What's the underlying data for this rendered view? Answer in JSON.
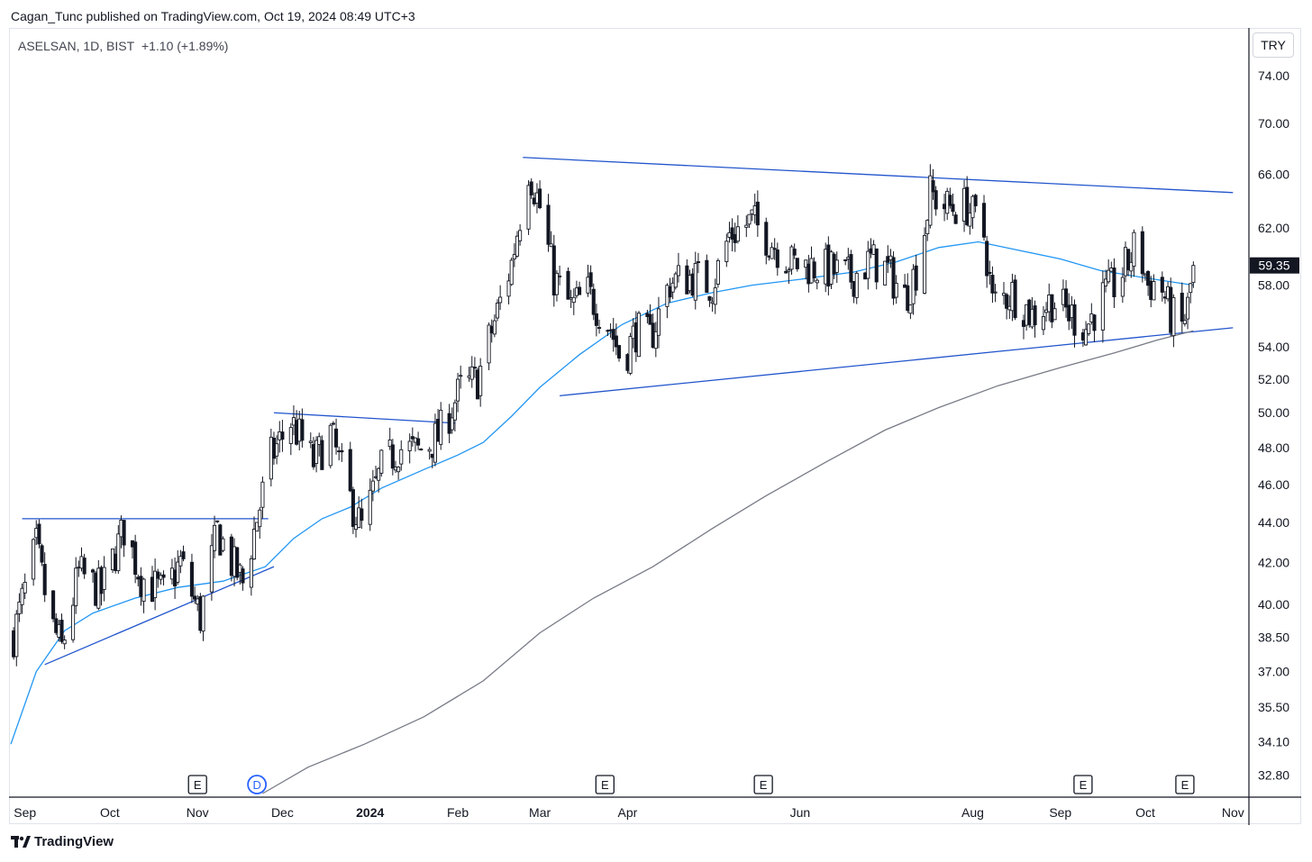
{
  "header": {
    "published": "Cagan_Tunc published on TradingView.com, Oct 19, 2024 08:49 UTC+3"
  },
  "symbol": {
    "info": "ASELSAN, 1D, BIST",
    "change": "+1.10 (+1.89%)"
  },
  "currency": "TRY",
  "branding": {
    "name": "TradingView"
  },
  "colors": {
    "candle": "#131722",
    "ma50": "#2196f3",
    "ma200": "#787b86",
    "trendline": "#2255cc",
    "price_tag": "#131722"
  },
  "chart_data": {
    "type": "candlestick",
    "symbol": "ASELSAN",
    "interval": "1D",
    "exchange": "BIST",
    "y_scale": "log",
    "ylim": [
      32.0,
      78.0
    ],
    "y_ticks": [
      "74.00",
      "70.00",
      "66.00",
      "62.00",
      "58.00",
      "54.00",
      "52.00",
      "50.00",
      "48.00",
      "46.00",
      "44.00",
      "42.00",
      "40.00",
      "38.50",
      "37.00",
      "35.50",
      "34.10",
      "32.80"
    ],
    "x_ticks": [
      {
        "label": "Sep",
        "date": "2023-09-01"
      },
      {
        "label": "Oct",
        "date": "2023-10-01"
      },
      {
        "label": "Nov",
        "date": "2023-11-01"
      },
      {
        "label": "Dec",
        "date": "2023-12-01"
      },
      {
        "label": "2024",
        "date": "2024-01-01",
        "bold": true
      },
      {
        "label": "Feb",
        "date": "2024-02-01"
      },
      {
        "label": "Mar",
        "date": "2024-03-01"
      },
      {
        "label": "Apr",
        "date": "2024-04-01"
      },
      {
        "label": "Jun",
        "date": "2024-06-01"
      },
      {
        "label": "Aug",
        "date": "2024-08-01"
      },
      {
        "label": "Sep",
        "date": "2024-09-01"
      },
      {
        "label": "Oct",
        "date": "2024-10-01"
      },
      {
        "label": "Nov",
        "date": "2024-11-01"
      }
    ],
    "xlim": [
      "2023-08-27",
      "2024-11-06"
    ],
    "last_price": "59.35",
    "last_date": "2024-10-18",
    "close_path": [
      [
        "2023-08-28",
        38.6
      ],
      [
        "2023-09-05",
        42.8
      ],
      [
        "2023-09-10",
        39.2
      ],
      [
        "2023-09-14",
        38.0
      ],
      [
        "2023-09-20",
        41.5
      ],
      [
        "2023-09-28",
        40.6
      ],
      [
        "2023-10-06",
        43.7
      ],
      [
        "2023-10-12",
        41.3
      ],
      [
        "2023-10-20",
        40.5
      ],
      [
        "2023-10-26",
        42.0
      ],
      [
        "2023-11-02",
        39.4
      ],
      [
        "2023-11-08",
        43.6
      ],
      [
        "2023-11-13",
        42.0
      ],
      [
        "2023-11-17",
        41.0
      ],
      [
        "2023-11-22",
        44.2
      ],
      [
        "2023-11-27",
        47.5
      ],
      [
        "2023-12-04",
        49.5
      ],
      [
        "2023-12-12",
        47.2
      ],
      [
        "2023-12-18",
        48.8
      ],
      [
        "2023-12-25",
        45.2
      ],
      [
        "2023-12-29",
        43.7
      ],
      [
        "2024-01-05",
        46.8
      ],
      [
        "2024-01-11",
        48.0
      ],
      [
        "2024-01-18",
        47.8
      ],
      [
        "2024-01-25",
        48.6
      ],
      [
        "2024-02-02",
        51.4
      ],
      [
        "2024-02-08",
        52.0
      ],
      [
        "2024-02-14",
        55.6
      ],
      [
        "2024-02-20",
        59.5
      ],
      [
        "2024-02-26",
        66.5
      ],
      [
        "2024-03-01",
        63.5
      ],
      [
        "2024-03-06",
        58.5
      ],
      [
        "2024-03-12",
        56.5
      ],
      [
        "2024-03-18",
        57.5
      ],
      [
        "2024-03-26",
        55.2
      ],
      [
        "2024-03-30",
        53.0
      ],
      [
        "2024-04-04",
        55.0
      ],
      [
        "2024-04-09",
        54.5
      ],
      [
        "2024-04-16",
        58.2
      ],
      [
        "2024-04-24",
        58.6
      ],
      [
        "2024-05-01",
        58.0
      ],
      [
        "2024-05-07",
        61.5
      ],
      [
        "2024-05-15",
        62.5
      ],
      [
        "2024-05-22",
        61.0
      ],
      [
        "2024-05-29",
        59.5
      ],
      [
        "2024-06-05",
        59.3
      ],
      [
        "2024-06-12",
        59.0
      ],
      [
        "2024-06-19",
        58.5
      ],
      [
        "2024-06-26",
        59.7
      ],
      [
        "2024-07-02",
        59.0
      ],
      [
        "2024-07-08",
        57.2
      ],
      [
        "2024-07-13",
        59.5
      ],
      [
        "2024-07-17",
        64.5
      ],
      [
        "2024-07-23",
        63.5
      ],
      [
        "2024-07-30",
        63.6
      ],
      [
        "2024-08-05",
        61.5
      ],
      [
        "2024-08-08",
        56.8
      ],
      [
        "2024-08-15",
        57.5
      ],
      [
        "2024-08-22",
        56.0
      ],
      [
        "2024-08-29",
        57.0
      ],
      [
        "2024-09-05",
        56.0
      ],
      [
        "2024-09-10",
        55.2
      ],
      [
        "2024-09-15",
        57.0
      ],
      [
        "2024-09-20",
        58.0
      ],
      [
        "2024-09-25",
        59.5
      ],
      [
        "2024-09-28",
        61.0
      ],
      [
        "2024-10-02",
        58.0
      ],
      [
        "2024-10-06",
        58.3
      ],
      [
        "2024-10-10",
        56.0
      ],
      [
        "2024-10-14",
        55.3
      ],
      [
        "2024-10-16",
        56.5
      ],
      [
        "2024-10-18",
        59.35
      ]
    ],
    "ma50": [
      [
        "2023-08-27",
        34.0
      ],
      [
        "2023-09-05",
        37.0
      ],
      [
        "2023-09-15",
        38.8
      ],
      [
        "2023-09-25",
        39.6
      ],
      [
        "2023-10-10",
        40.3
      ],
      [
        "2023-10-25",
        40.8
      ],
      [
        "2023-11-10",
        41.1
      ],
      [
        "2023-11-25",
        41.8
      ],
      [
        "2023-12-05",
        43.2
      ],
      [
        "2023-12-15",
        44.2
      ],
      [
        "2023-12-25",
        44.8
      ],
      [
        "2024-01-05",
        45.8
      ],
      [
        "2024-01-20",
        46.8
      ],
      [
        "2024-02-01",
        47.6
      ],
      [
        "2024-02-10",
        48.3
      ],
      [
        "2024-02-20",
        49.8
      ],
      [
        "2024-03-01",
        51.5
      ],
      [
        "2024-03-15",
        53.5
      ],
      [
        "2024-03-30",
        55.4
      ],
      [
        "2024-04-15",
        56.8
      ],
      [
        "2024-05-01",
        57.5
      ],
      [
        "2024-05-15",
        58.0
      ],
      [
        "2024-06-01",
        58.4
      ],
      [
        "2024-06-20",
        58.9
      ],
      [
        "2024-07-05",
        59.6
      ],
      [
        "2024-07-20",
        60.6
      ],
      [
        "2024-08-03",
        61.0
      ],
      [
        "2024-08-15",
        60.5
      ],
      [
        "2024-09-01",
        59.8
      ],
      [
        "2024-09-15",
        59.0
      ],
      [
        "2024-10-01",
        58.5
      ],
      [
        "2024-10-18",
        58.0
      ]
    ],
    "ma200": [
      [
        "2023-11-24",
        32.1
      ],
      [
        "2023-12-10",
        33.1
      ],
      [
        "2023-12-30",
        34.0
      ],
      [
        "2024-01-20",
        35.1
      ],
      [
        "2024-02-10",
        36.6
      ],
      [
        "2024-03-01",
        38.7
      ],
      [
        "2024-03-20",
        40.3
      ],
      [
        "2024-04-10",
        41.8
      ],
      [
        "2024-05-01",
        43.7
      ],
      [
        "2024-05-20",
        45.4
      ],
      [
        "2024-06-10",
        47.2
      ],
      [
        "2024-07-01",
        49.0
      ],
      [
        "2024-07-20",
        50.3
      ],
      [
        "2024-08-10",
        51.6
      ],
      [
        "2024-09-01",
        52.7
      ],
      [
        "2024-09-20",
        53.6
      ],
      [
        "2024-10-05",
        54.4
      ],
      [
        "2024-10-18",
        55.0
      ]
    ],
    "trendlines": [
      {
        "from": [
          "2024-02-24",
          67.3
        ],
        "to": [
          "2024-11-01",
          64.6
        ]
      },
      {
        "from": [
          "2024-03-08",
          51.0
        ],
        "to": [
          "2024-11-01",
          55.2
        ]
      },
      {
        "from": [
          "2023-11-28",
          50.0
        ],
        "to": [
          "2024-01-31",
          49.4
        ]
      },
      {
        "from": [
          "2023-08-31",
          44.2
        ],
        "to": [
          "2023-11-26",
          44.2
        ]
      },
      {
        "from": [
          "2023-09-08",
          37.3
        ],
        "to": [
          "2023-11-28",
          41.8
        ]
      }
    ],
    "events": [
      {
        "label": "E",
        "date": "2023-11-01",
        "color": "#131722"
      },
      {
        "label": "D",
        "date": "2023-11-22",
        "color": "#2962ff",
        "round": true
      },
      {
        "label": "E",
        "date": "2024-03-24",
        "color": "#131722"
      },
      {
        "label": "E",
        "date": "2024-05-19",
        "color": "#131722"
      },
      {
        "label": "E",
        "date": "2024-09-09",
        "color": "#131722"
      },
      {
        "label": "E",
        "date": "2024-10-15",
        "color": "#131722"
      }
    ]
  }
}
